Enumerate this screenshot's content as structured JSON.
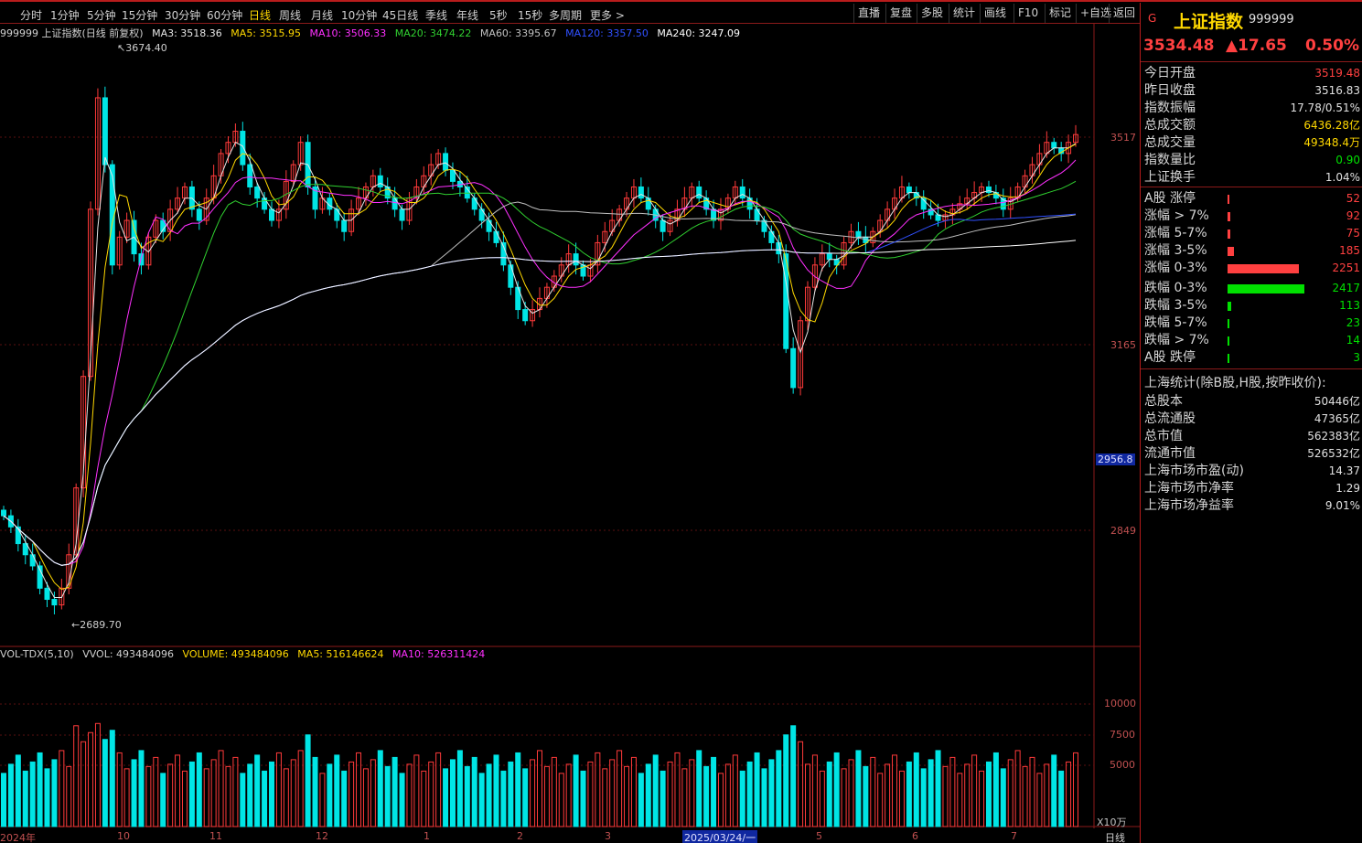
{
  "toolbar": {
    "periods": [
      "分时",
      "1分钟",
      "5分钟",
      "15分钟",
      "30分钟",
      "60分钟",
      "日线",
      "周线",
      "月线",
      "10分钟",
      "45日线",
      "季线",
      "年线",
      "5秒",
      "15秒",
      "多周期",
      "更多 >"
    ],
    "active_period": "日线",
    "right_buttons": [
      "直播",
      "复盘",
      "多股",
      "统计",
      "画线",
      "F10",
      "标记",
      "+自选",
      "返回"
    ]
  },
  "chart_header": {
    "code_name": "999999 上证指数(日线 前复权)",
    "ma3": "MA3: 3518.36",
    "ma5": "MA5: 3515.95",
    "ma10": "MA10: 3506.33",
    "ma20": "MA20: 3474.22",
    "ma60": "MA60: 3395.67",
    "ma120": "MA120: 3357.50",
    "ma240": "MA240: 3247.09"
  },
  "volume_header": {
    "name": "VOL-TDX(5,10)",
    "vvol": "VVOL: 493484096",
    "volume": "VOLUME: 493484096",
    "ma5": "MA5: 516146624",
    "ma10": "MA10: 526311424"
  },
  "y_axis": {
    "labels": [
      "3517",
      "3165",
      "2956.8",
      "2849"
    ],
    "volume_labels": [
      "10000",
      "7500",
      "5000"
    ],
    "unit": "X10万"
  },
  "annotations": {
    "high": "3674.40",
    "low": "2689.70"
  },
  "x_axis": {
    "labels": [
      "2024年",
      "10",
      "11",
      "12",
      "1",
      "2",
      "3",
      "2025/03/24/一",
      "5",
      "6",
      "7"
    ],
    "period_label": "日线"
  },
  "sidebar": {
    "g_label": "G",
    "name": "上证指数",
    "code": "999999",
    "price": "3534.48",
    "change": "▲17.65",
    "change_pct": "0.50%",
    "stats": [
      {
        "k": "今日开盘",
        "v": "3519.48",
        "c": "#ff4040"
      },
      {
        "k": "昨日收盘",
        "v": "3516.83",
        "c": "#e0e0e0"
      },
      {
        "k": "指数振幅",
        "v": "17.78/0.51%",
        "c": "#e0e0e0"
      },
      {
        "k": "总成交额",
        "v": "6436.28亿",
        "c": "#ffd800"
      },
      {
        "k": "总成交量",
        "v": "49348.4万",
        "c": "#ffd800"
      },
      {
        "k": "指数量比",
        "v": "0.90",
        "c": "#00e000"
      },
      {
        "k": "上证换手",
        "v": "1.04%",
        "c": "#e0e0e0"
      }
    ],
    "breadth": [
      {
        "k": "A股 涨停",
        "v": "52",
        "c": "#ff4040",
        "frac": 0.02
      },
      {
        "k": "涨幅 > 7%",
        "v": "92",
        "c": "#ff4040",
        "frac": 0.04
      },
      {
        "k": "涨幅 5-7%",
        "v": "75",
        "c": "#ff4040",
        "frac": 0.03
      },
      {
        "k": "涨幅 3-5%",
        "v": "185",
        "c": "#ff4040",
        "frac": 0.08
      },
      {
        "k": "涨幅 0-3%",
        "v": "2251",
        "c": "#ff4040",
        "frac": 0.93
      },
      {
        "k": "跌幅 0-3%",
        "v": "2417",
        "c": "#00e000",
        "frac": 1.0
      },
      {
        "k": "跌幅 3-5%",
        "v": "113",
        "c": "#00e000",
        "frac": 0.05
      },
      {
        "k": "跌幅 5-7%",
        "v": "23",
        "c": "#00e000",
        "frac": 0.01
      },
      {
        "k": "跌幅 > 7%",
        "v": "14",
        "c": "#00e000",
        "frac": 0.01
      },
      {
        "k": "A股 跌停",
        "v": "3",
        "c": "#00e000",
        "frac": 0.01
      }
    ],
    "sh_stats_title": "上海统计(除B股,H股,按昨收价):",
    "sh_stats": [
      {
        "k": "总股本",
        "v": "50446亿"
      },
      {
        "k": "总流通股",
        "v": "47365亿"
      },
      {
        "k": "总市值",
        "v": "562383亿"
      },
      {
        "k": "流通市值",
        "v": "526532亿"
      },
      {
        "k": "上海市场市盈(动)",
        "v": "14.37"
      },
      {
        "k": "上海市场市净率",
        "v": "1.29"
      },
      {
        "k": "上海市场净益率",
        "v": "9.01%"
      }
    ]
  },
  "colors": {
    "up": "#ff3a3a",
    "down": "#00e5e5",
    "ma3": "#e6e6e6",
    "ma5": "#ffd800",
    "ma10": "#ff30ff",
    "ma20": "#30d030",
    "ma60": "#c0c0c0",
    "ma120": "#3050ff",
    "ma240": "#ffffff"
  },
  "chart_data": {
    "type": "candlestick",
    "price_range": [
      2689.7,
      3674.4
    ],
    "close_series": [
      2850,
      2830,
      2800,
      2780,
      2760,
      2720,
      2700,
      2690,
      2720,
      2780,
      2900,
      3100,
      3400,
      3600,
      3480,
      3300,
      3350,
      3380,
      3320,
      3300,
      3350,
      3380,
      3360,
      3400,
      3420,
      3440,
      3400,
      3380,
      3420,
      3460,
      3500,
      3520,
      3540,
      3480,
      3440,
      3420,
      3400,
      3380,
      3400,
      3450,
      3480,
      3520,
      3440,
      3400,
      3420,
      3400,
      3380,
      3360,
      3400,
      3420,
      3440,
      3460,
      3440,
      3420,
      3400,
      3380,
      3420,
      3440,
      3460,
      3480,
      3500,
      3470,
      3450,
      3440,
      3420,
      3400,
      3380,
      3360,
      3340,
      3300,
      3260,
      3220,
      3200,
      3220,
      3240,
      3260,
      3280,
      3300,
      3320,
      3300,
      3280,
      3300,
      3340,
      3360,
      3380,
      3400,
      3420,
      3440,
      3420,
      3400,
      3380,
      3360,
      3380,
      3400,
      3420,
      3440,
      3420,
      3400,
      3380,
      3400,
      3420,
      3440,
      3420,
      3400,
      3380,
      3360,
      3340,
      3320,
      3150,
      3080,
      3200,
      3260,
      3300,
      3320,
      3310,
      3300,
      3340,
      3360,
      3350,
      3340,
      3360,
      3380,
      3400,
      3420,
      3440,
      3430,
      3420,
      3400,
      3390,
      3380,
      3390,
      3400,
      3410,
      3420,
      3430,
      3440,
      3430,
      3420,
      3400,
      3420,
      3440,
      3460,
      3480,
      3500,
      3520,
      3510,
      3500,
      3520,
      3534
    ]
  }
}
